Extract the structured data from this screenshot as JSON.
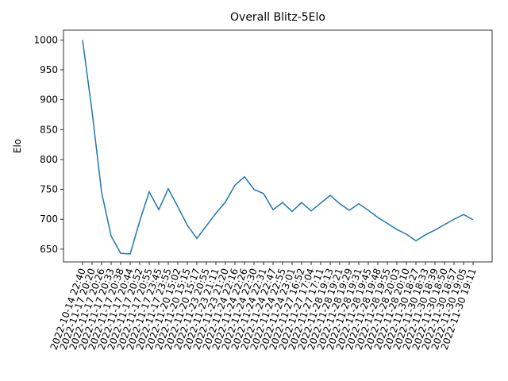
{
  "chart_data": {
    "type": "line",
    "title": "Overall Blitz-5Elo",
    "y_label": "Elo",
    "categories": [
      "2022-10-14 22:40",
      "2022-11-17 20:20",
      "2022-11-17 20:26",
      "2022-11-17 20:33",
      "2022-11-17 20:38",
      "2022-11-17 20:44",
      "2022-11-17 20:52",
      "2022-11-17 20:55",
      "2022-11-17 23:45",
      "2022-11-17 23:55",
      "2022-11-20 15:02",
      "2022-11-20 15:15",
      "2022-11-20 15:17",
      "2022-11-23 20:55",
      "2022-11-23 21:11",
      "2022-11-23 21:20",
      "2022-11-24 22:16",
      "2022-11-24 22:26",
      "2022-11-24 22:30",
      "2022-11-24 22:31",
      "2022-11-24 22:47",
      "2022-11-24 22:55",
      "2022-11-24 23:01",
      "2022-11-27 16:52",
      "2022-11-27 17:04",
      "2022-11-27 17:11",
      "2022-11-28 19:13",
      "2022-11-28 19:21",
      "2022-11-28 19:29",
      "2022-11-28 19:31",
      "2022-11-28 19:45",
      "2022-11-28 19:48",
      "2022-11-28 19:55",
      "2022-11-28 20:03",
      "2022-11-28 20:10",
      "2022-11-30 18:27",
      "2022-11-30 18:33",
      "2022-11-30 18:39",
      "2022-11-30 18:50",
      "2022-11-30 18:57",
      "2022-11-30 19:05",
      "2022-11-30 19:11"
    ],
    "series": [
      {
        "name": "Elo",
        "color": "#1f77b4",
        "values": [
          1000,
          880,
          745,
          672,
          643,
          642,
          697,
          746,
          716,
          751,
          721,
          690,
          668,
          689,
          710,
          729,
          757,
          771,
          750,
          743,
          716,
          728,
          713,
          728,
          714,
          727,
          740,
          726,
          715,
          726,
          715,
          703,
          693,
          683,
          675,
          664,
          674,
          682,
          691,
          700,
          708,
          699
        ]
      }
    ],
    "ylim": [
      628.6,
      1016.4
    ],
    "yticks": [
      650,
      700,
      750,
      800,
      850,
      900,
      950,
      1000
    ]
  }
}
